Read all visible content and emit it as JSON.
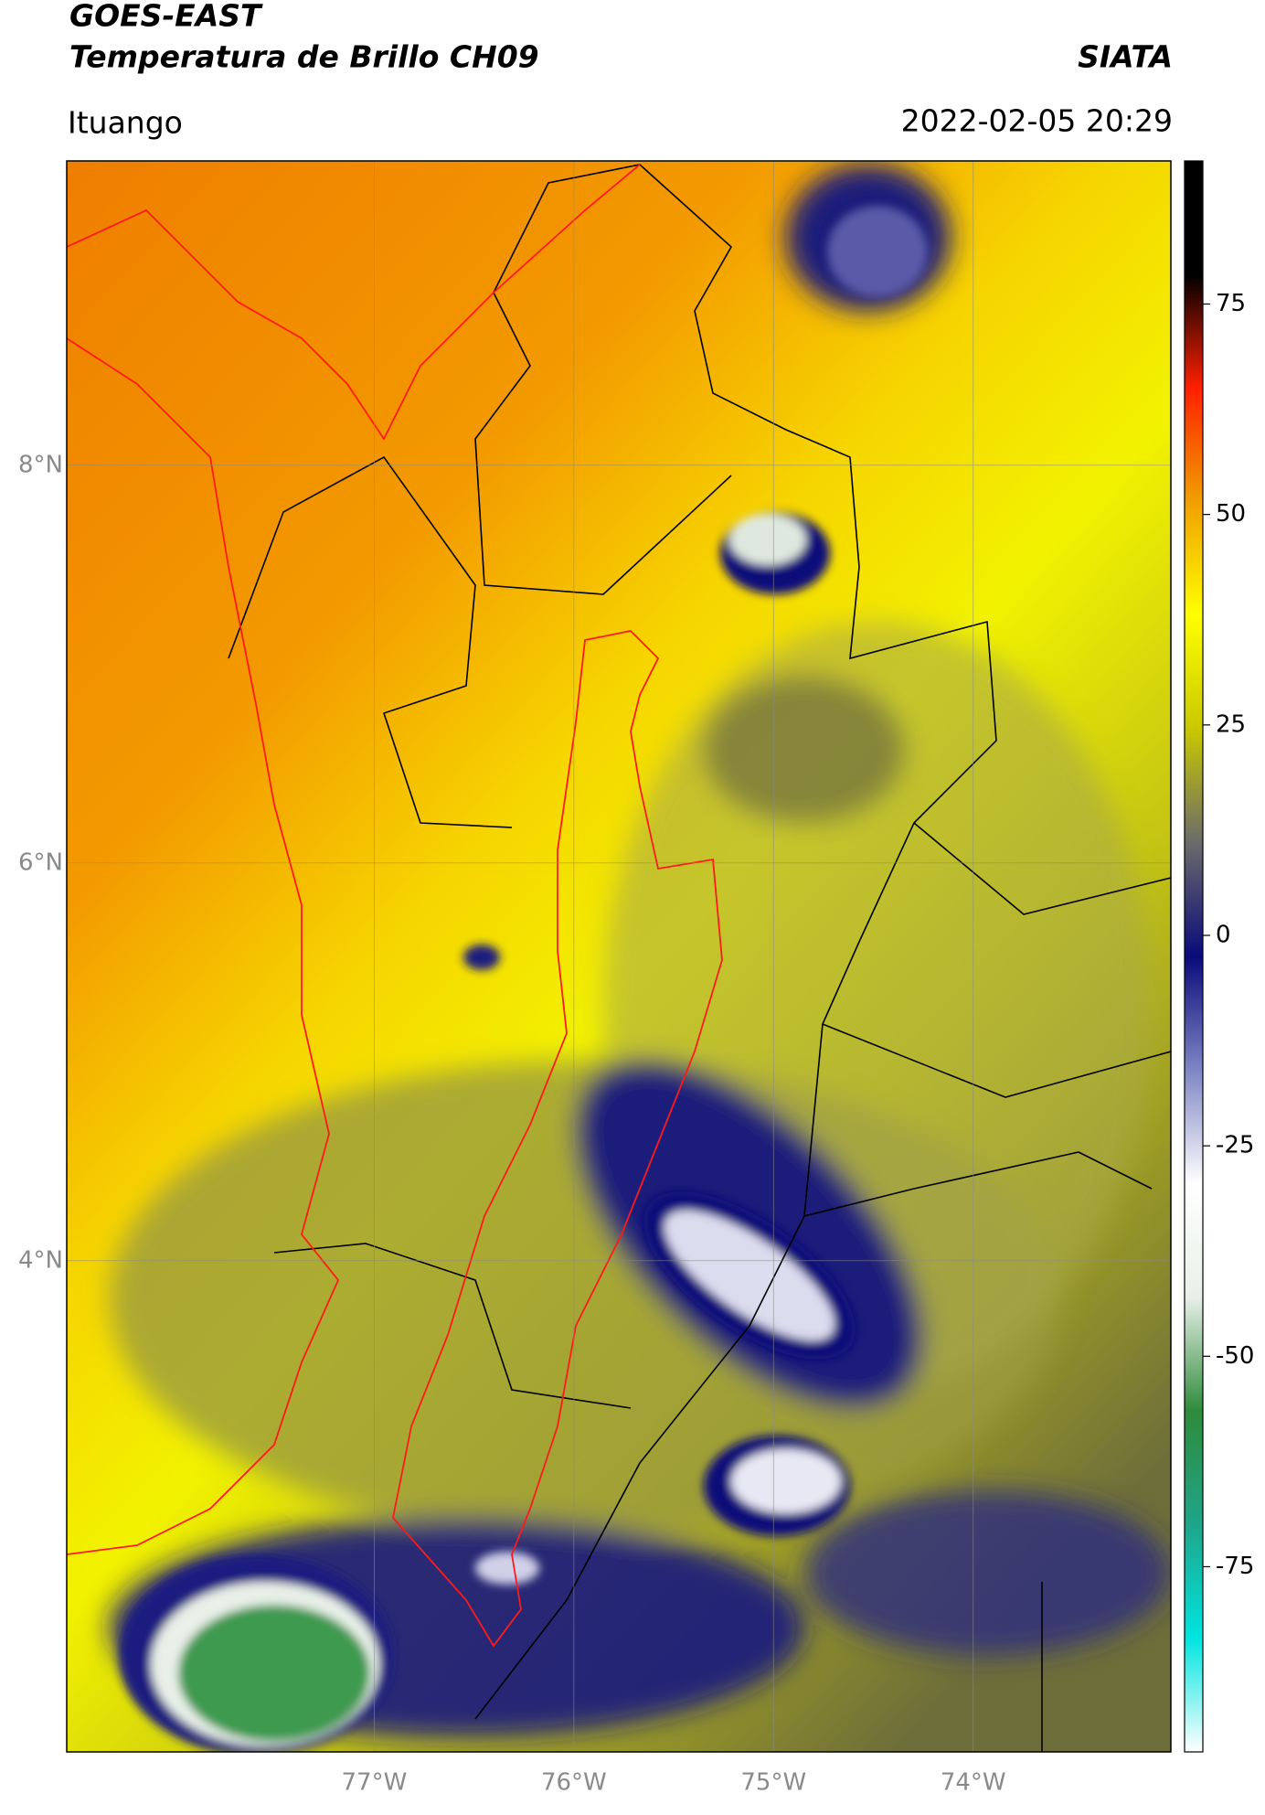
{
  "chart_data": {
    "type": "map",
    "title": "GOES-EAST",
    "subtitle": "Temperatura de Brillo CH09",
    "source": "SIATA",
    "region": "Ituango",
    "timestamp": "2022-02-05 20:29",
    "xlim": [
      -78.54,
      -73.01
    ],
    "ylim": [
      1.53,
      9.53
    ],
    "xticks": [
      {
        "value": -77,
        "label": "77°W"
      },
      {
        "value": -76,
        "label": "76°W"
      },
      {
        "value": -75,
        "label": "75°W"
      },
      {
        "value": -74,
        "label": "74°W"
      }
    ],
    "yticks": [
      {
        "value": 8,
        "label": "8°N"
      },
      {
        "value": 6,
        "label": "6°N"
      },
      {
        "value": 4,
        "label": "4°N"
      }
    ],
    "grid": true,
    "colorbar": {
      "clim": [
        -97,
        92
      ],
      "ticks": [
        75,
        50,
        25,
        0,
        -25,
        -50,
        -75
      ],
      "colors": [
        "#ffffff",
        "#00e5e0",
        "#1fa58a",
        "#2e8b3a",
        "#e8f0e8",
        "#ffffff",
        "#7f86c4",
        "#0a0a7a",
        "#6b6b6b",
        "#c8c800",
        "#ffff00",
        "#f0a000",
        "#ff2000",
        "#000000",
        "#000000"
      ]
    }
  }
}
